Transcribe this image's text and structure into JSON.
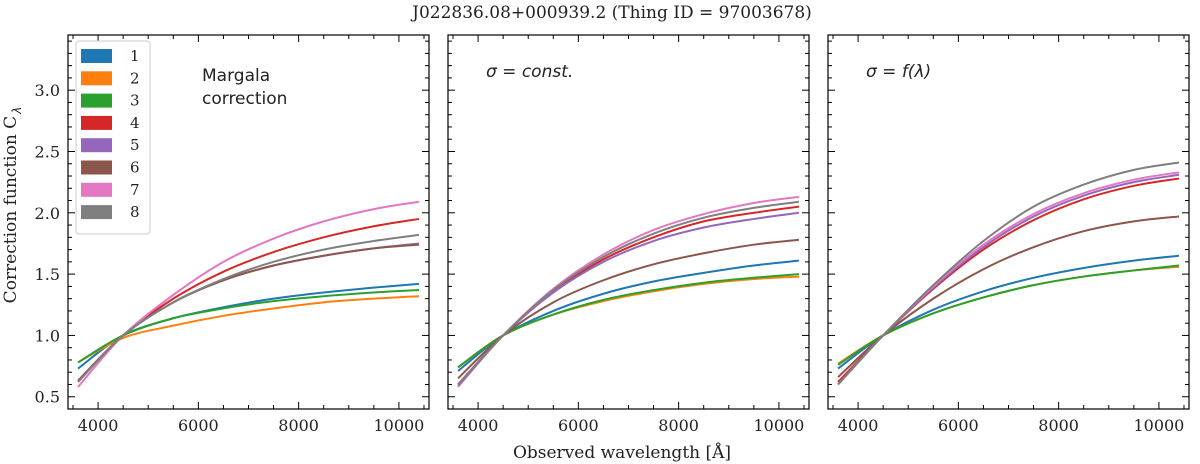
{
  "figure_title": "J022836.08+000939.2   (Thing ID = 97003678)",
  "xlabel": "Observed wavelength [Å]",
  "ylabel_main": "Correction function C",
  "ylabel_sub": "λ",
  "series_colors": [
    "#1f77b4",
    "#ff7f0e",
    "#2ca02c",
    "#d62728",
    "#9467bd",
    "#8c564b",
    "#e377c2",
    "#7f7f7f"
  ],
  "legend_labels": [
    "1",
    "2",
    "3",
    "4",
    "5",
    "6",
    "7",
    "8"
  ],
  "chart_data": [
    {
      "type": "line",
      "panel_label": "Margala\ncorrection",
      "annotation_line1": "Margala",
      "annotation_line2": "correction",
      "xlim": [
        3400,
        10600
      ],
      "ylim": [
        0.4,
        3.45
      ],
      "xticks": [
        4000,
        6000,
        8000,
        10000
      ],
      "yticks": [
        0.5,
        1.0,
        1.5,
        2.0,
        2.5,
        3.0
      ],
      "ytick_labels": [
        "0.5",
        "1.0",
        "1.5",
        "2.0",
        "2.5",
        "3.0"
      ],
      "x": [
        3600,
        4500,
        5500,
        6500,
        7500,
        8500,
        9500,
        10400
      ],
      "series": [
        {
          "name": "1",
          "values": [
            0.73,
            1.0,
            1.14,
            1.23,
            1.3,
            1.35,
            1.39,
            1.42
          ]
        },
        {
          "name": "2",
          "values": [
            0.78,
            0.98,
            1.08,
            1.16,
            1.22,
            1.27,
            1.3,
            1.32
          ]
        },
        {
          "name": "3",
          "values": [
            0.78,
            1.0,
            1.14,
            1.22,
            1.28,
            1.32,
            1.35,
            1.37
          ]
        },
        {
          "name": "4",
          "values": [
            0.63,
            1.0,
            1.3,
            1.52,
            1.68,
            1.8,
            1.89,
            1.95
          ]
        },
        {
          "name": "5",
          "values": [
            0.63,
            1.0,
            1.27,
            1.45,
            1.57,
            1.65,
            1.71,
            1.75
          ]
        },
        {
          "name": "6",
          "values": [
            0.63,
            1.0,
            1.27,
            1.45,
            1.57,
            1.65,
            1.71,
            1.74
          ]
        },
        {
          "name": "7",
          "values": [
            0.58,
            1.0,
            1.33,
            1.6,
            1.79,
            1.93,
            2.03,
            2.09
          ]
        },
        {
          "name": "8",
          "values": [
            0.62,
            1.0,
            1.27,
            1.46,
            1.6,
            1.7,
            1.77,
            1.82
          ]
        }
      ]
    },
    {
      "type": "line",
      "annotation": "σ = const.",
      "xlim": [
        3400,
        10600
      ],
      "ylim": [
        0.4,
        3.45
      ],
      "xticks": [
        4000,
        6000,
        8000,
        10000
      ],
      "x": [
        3600,
        4500,
        5500,
        6500,
        7500,
        8500,
        9500,
        10400
      ],
      "series": [
        {
          "name": "1",
          "values": [
            0.71,
            1.0,
            1.2,
            1.34,
            1.44,
            1.51,
            1.57,
            1.61
          ]
        },
        {
          "name": "2",
          "values": [
            0.74,
            1.0,
            1.17,
            1.28,
            1.36,
            1.42,
            1.46,
            1.48
          ]
        },
        {
          "name": "3",
          "values": [
            0.74,
            1.0,
            1.17,
            1.29,
            1.37,
            1.43,
            1.47,
            1.5
          ]
        },
        {
          "name": "4",
          "values": [
            0.6,
            1.0,
            1.36,
            1.62,
            1.8,
            1.93,
            2.0,
            2.05
          ]
        },
        {
          "name": "5",
          "values": [
            0.6,
            1.0,
            1.35,
            1.6,
            1.77,
            1.88,
            1.95,
            2.0
          ]
        },
        {
          "name": "6",
          "values": [
            0.65,
            1.0,
            1.27,
            1.45,
            1.58,
            1.67,
            1.74,
            1.78
          ]
        },
        {
          "name": "7",
          "values": [
            0.58,
            1.0,
            1.38,
            1.66,
            1.86,
            1.99,
            2.08,
            2.13
          ]
        },
        {
          "name": "8",
          "values": [
            0.59,
            1.0,
            1.37,
            1.64,
            1.83,
            1.96,
            2.04,
            2.09
          ]
        }
      ]
    },
    {
      "type": "line",
      "annotation": "σ = f(λ)",
      "xlim": [
        3400,
        10600
      ],
      "ylim": [
        0.4,
        3.45
      ],
      "xticks": [
        4000,
        6000,
        8000,
        10000
      ],
      "x": [
        3600,
        4500,
        5500,
        6500,
        7500,
        8500,
        9500,
        10400
      ],
      "series": [
        {
          "name": "1",
          "values": [
            0.73,
            1.0,
            1.21,
            1.36,
            1.47,
            1.55,
            1.61,
            1.65
          ]
        },
        {
          "name": "2",
          "values": [
            0.77,
            1.0,
            1.18,
            1.31,
            1.41,
            1.48,
            1.53,
            1.56
          ]
        },
        {
          "name": "3",
          "values": [
            0.76,
            1.0,
            1.18,
            1.31,
            1.41,
            1.48,
            1.53,
            1.57
          ]
        },
        {
          "name": "4",
          "values": [
            0.62,
            1.0,
            1.38,
            1.7,
            1.94,
            2.11,
            2.22,
            2.28
          ]
        },
        {
          "name": "5",
          "values": [
            0.6,
            1.0,
            1.39,
            1.72,
            1.97,
            2.14,
            2.25,
            2.31
          ]
        },
        {
          "name": "6",
          "values": [
            0.66,
            1.0,
            1.3,
            1.54,
            1.72,
            1.85,
            1.93,
            1.97
          ]
        },
        {
          "name": "7",
          "values": [
            0.6,
            1.0,
            1.4,
            1.74,
            1.99,
            2.16,
            2.27,
            2.33
          ]
        },
        {
          "name": "8",
          "values": [
            0.6,
            1.0,
            1.41,
            1.77,
            2.05,
            2.23,
            2.35,
            2.41
          ]
        }
      ]
    }
  ]
}
